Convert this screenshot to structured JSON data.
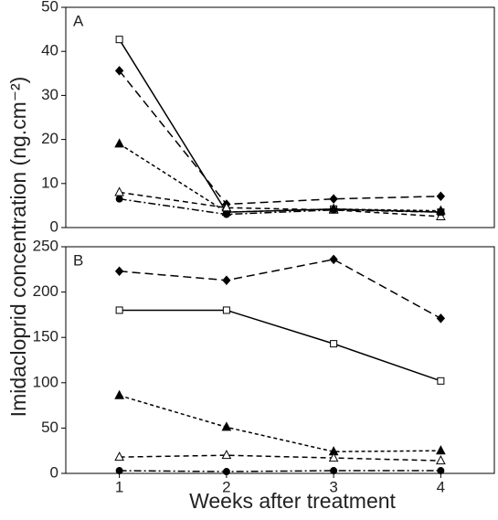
{
  "ylabel": "Imidacloprid concentration (ng.cm⁻²)",
  "xlabel": "Weeks after treatment",
  "chart_data": [
    {
      "type": "line",
      "panel_label": "A",
      "xlim": [
        0.5,
        4.5
      ],
      "ylim": [
        0,
        50
      ],
      "yticks": [
        0,
        10,
        20,
        30,
        40,
        50
      ],
      "x": [
        1,
        2,
        3,
        4
      ],
      "series": [
        {
          "color": "#000000",
          "marker": "square-open",
          "dash": "solid",
          "values": [
            42.7,
            3.5,
            4.2,
            3.5
          ]
        },
        {
          "color": "#000000",
          "marker": "diamond",
          "dash": "long",
          "values": [
            35.6,
            5.3,
            6.5,
            7.1
          ]
        },
        {
          "color": "#000000",
          "marker": "triangle",
          "dash": "short",
          "values": [
            19,
            3.5,
            4.2,
            3.8
          ]
        },
        {
          "color": "#000000",
          "marker": "triangle-open",
          "dash": "medium",
          "values": [
            8,
            4.5,
            4,
            2.5
          ]
        },
        {
          "color": "#000000",
          "marker": "circle",
          "dash": "dashdot",
          "values": [
            6.5,
            3,
            4,
            3.5
          ]
        }
      ]
    },
    {
      "type": "line",
      "panel_label": "B",
      "xlim": [
        0.5,
        4.5
      ],
      "xticks": [
        1,
        2,
        3,
        4
      ],
      "ylim": [
        0,
        250
      ],
      "yticks": [
        0,
        50,
        100,
        150,
        200,
        250
      ],
      "x": [
        1,
        2,
        3,
        4
      ],
      "series": [
        {
          "color": "#000000",
          "marker": "square-open",
          "dash": "solid",
          "values": [
            180,
            180,
            143,
            102
          ]
        },
        {
          "color": "#000000",
          "marker": "diamond",
          "dash": "long",
          "values": [
            223,
            213,
            236,
            171
          ]
        },
        {
          "color": "#000000",
          "marker": "triangle",
          "dash": "short",
          "values": [
            86,
            51,
            24,
            25
          ]
        },
        {
          "color": "#000000",
          "marker": "triangle-open",
          "dash": "medium",
          "values": [
            18,
            20,
            17,
            14
          ]
        },
        {
          "color": "#000000",
          "marker": "circle",
          "dash": "dashdot",
          "values": [
            3,
            2,
            3,
            3
          ]
        }
      ]
    }
  ]
}
